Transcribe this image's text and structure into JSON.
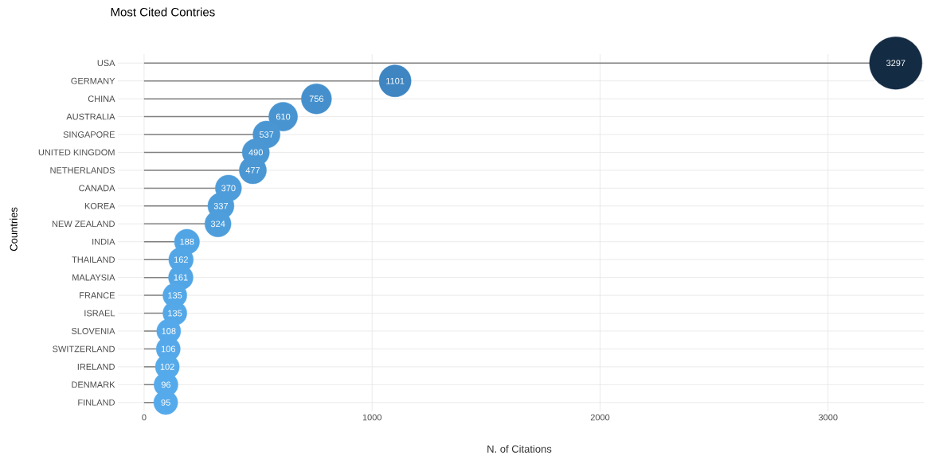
{
  "chart_data": {
    "type": "lollipop",
    "title": "Most Cited Contries",
    "xlabel": "N. of Citations",
    "ylabel": "Countries",
    "orientation": "horizontal",
    "categories": [
      "USA",
      "GERMANY",
      "CHINA",
      "AUSTRALIA",
      "SINGAPORE",
      "UNITED KINGDOM",
      "NETHERLANDS",
      "CANADA",
      "KOREA",
      "NEW ZEALAND",
      "INDIA",
      "THAILAND",
      "MALAYSIA",
      "FRANCE",
      "ISRAEL",
      "SLOVENIA",
      "SWITZERLAND",
      "IRELAND",
      "DENMARK",
      "FINLAND"
    ],
    "values": [
      3297,
      1101,
      756,
      610,
      537,
      490,
      477,
      370,
      337,
      324,
      188,
      162,
      161,
      135,
      135,
      108,
      106,
      102,
      96,
      95
    ],
    "colors": [
      "#132b43",
      "#3e85c2",
      "#4590cc",
      "#4894d1",
      "#4996d3",
      "#4a97d4",
      "#4a97d4",
      "#4e9dda",
      "#4e9ddb",
      "#4f9edc",
      "#52a5e5",
      "#53a6e6",
      "#53a6e6",
      "#54a8e8",
      "#54a8e8",
      "#55a9ea",
      "#55a9ea",
      "#55aaea",
      "#55aaeb",
      "#55aaeb"
    ],
    "sizes": [
      1,
      0.37,
      0.33,
      0.3,
      0.27,
      0.27,
      0.27,
      0.25,
      0.25,
      0.25,
      0.23,
      0.22,
      0.22,
      0.21,
      0.21,
      0.21,
      0.21,
      0.21,
      0.21,
      0.21
    ],
    "xlim": [
      -115,
      3420
    ],
    "xticks": [
      0,
      1000,
      2000,
      3000
    ],
    "grid": true,
    "data_labels": true
  }
}
